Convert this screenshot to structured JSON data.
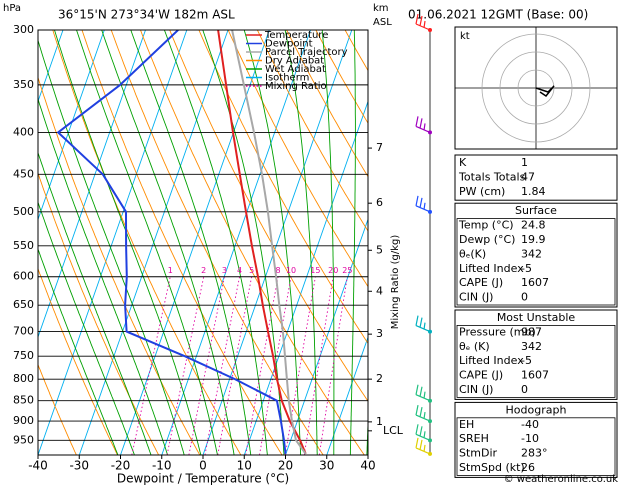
{
  "header": {
    "location": "36°15'N 273°34'W 182m ASL",
    "datetime": "01.06.2021 12GMT (Base: 00)",
    "copyright": "© weatheronline.co.uk"
  },
  "chart_data": {
    "type": "skewt",
    "y_label": "hPa",
    "y2_label": [
      "km",
      "ASL"
    ],
    "x_label": "Dewpoint / Temperature (°C)",
    "mixing_ratio_label": "Mixing Ratio (g/kg)",
    "pressure": [
      987,
      950,
      900,
      850,
      800,
      750,
      700,
      650,
      600,
      550,
      500,
      450,
      400,
      350,
      300
    ],
    "series": [
      {
        "name": "Temperature",
        "color": "#e02020",
        "values": [
          24.8,
          22.3,
          18.2,
          14.5,
          11.5,
          8.6,
          5.3,
          1.8,
          -1.8,
          -5.9,
          -10.2,
          -14.9,
          -20.1,
          -25.8,
          -32.4
        ]
      },
      {
        "name": "Dewpoint",
        "color": "#2040e0",
        "values": [
          19.9,
          18.4,
          16,
          13.3,
          1.3,
          -12.8,
          -29,
          -31.6,
          -33.6,
          -36.4,
          -39.3,
          -48.1,
          -62.5,
          -51.5,
          -42.1
        ]
      },
      {
        "name": "Parcel Trajectory",
        "color": "#a8a8a8",
        "values": [
          24.8,
          21.3,
          18.7,
          16.2,
          13.9,
          11.5,
          8.9,
          5.8,
          2.6,
          -1,
          -4.9,
          -9.5,
          -15,
          -21.5,
          -29
        ]
      }
    ],
    "reference_lines": [
      {
        "name": "Dry Adiabat",
        "color": "#ff8c00"
      },
      {
        "name": "Wet Adiabat",
        "color": "#00a000"
      },
      {
        "name": "Isotherm",
        "color": "#00b0f0"
      },
      {
        "name": "Mixing Ratio",
        "color": "#e000a0",
        "dotted": true
      }
    ],
    "mixing_ratios": [
      1,
      2,
      3,
      4,
      5,
      8,
      10,
      15,
      20,
      25
    ],
    "km_ticks": [
      1,
      2,
      3,
      4,
      5,
      6,
      7
    ],
    "km_tick_pressures": [
      902,
      800,
      705,
      625,
      557,
      488,
      418
    ],
    "lcl": {
      "label": "LCL",
      "pressure": 925
    },
    "wind_barbs": [
      {
        "pressure": 300,
        "color": "#ff2020"
      },
      {
        "pressure": 400,
        "color": "#a000c0"
      },
      {
        "pressure": 500,
        "color": "#2050ff"
      },
      {
        "pressure": 700,
        "color": "#00b0c0"
      },
      {
        "pressure": 850,
        "color": "#20c080"
      },
      {
        "pressure": 900,
        "color": "#20c080"
      },
      {
        "pressure": 950,
        "color": "#20c080"
      },
      {
        "pressure": 987,
        "color": "#e0d000"
      }
    ],
    "xlim": [
      -40,
      40
    ],
    "xticks": [
      -40,
      -30,
      -20,
      -10,
      0,
      10,
      20,
      30,
      40
    ],
    "ylim": [
      990,
      300
    ],
    "yticks": [
      300,
      350,
      400,
      450,
      500,
      550,
      600,
      650,
      700,
      750,
      800,
      850,
      900,
      950
    ],
    "log_scale": true,
    "grid": true
  },
  "hodograph": {
    "unit": "kt"
  },
  "indices": [
    [
      "K",
      "1"
    ],
    [
      "Totals Totals",
      "47"
    ],
    [
      "PW (cm)",
      "1.84"
    ]
  ],
  "sections": [
    {
      "title": "Surface",
      "rows": [
        [
          "Temp (°C)",
          "24.8"
        ],
        [
          "Dewp (°C)",
          "19.9"
        ],
        [
          "θₑ(K)",
          "342"
        ],
        [
          "Lifted Index",
          "-5"
        ],
        [
          "CAPE (J)",
          "1607"
        ],
        [
          "CIN (J)",
          "0"
        ]
      ]
    },
    {
      "title": "Most Unstable",
      "rows": [
        [
          "Pressure (mb)",
          "987"
        ],
        [
          "θₑ (K)",
          "342"
        ],
        [
          "Lifted Index",
          "-5"
        ],
        [
          "CAPE (J)",
          "1607"
        ],
        [
          "CIN (J)",
          "0"
        ]
      ]
    },
    {
      "title": "Hodograph",
      "rows": [
        [
          "EH",
          "-40"
        ],
        [
          "SREH",
          "-10"
        ],
        [
          "StmDir",
          "283°"
        ],
        [
          "StmSpd (kt)",
          "26"
        ]
      ]
    }
  ]
}
